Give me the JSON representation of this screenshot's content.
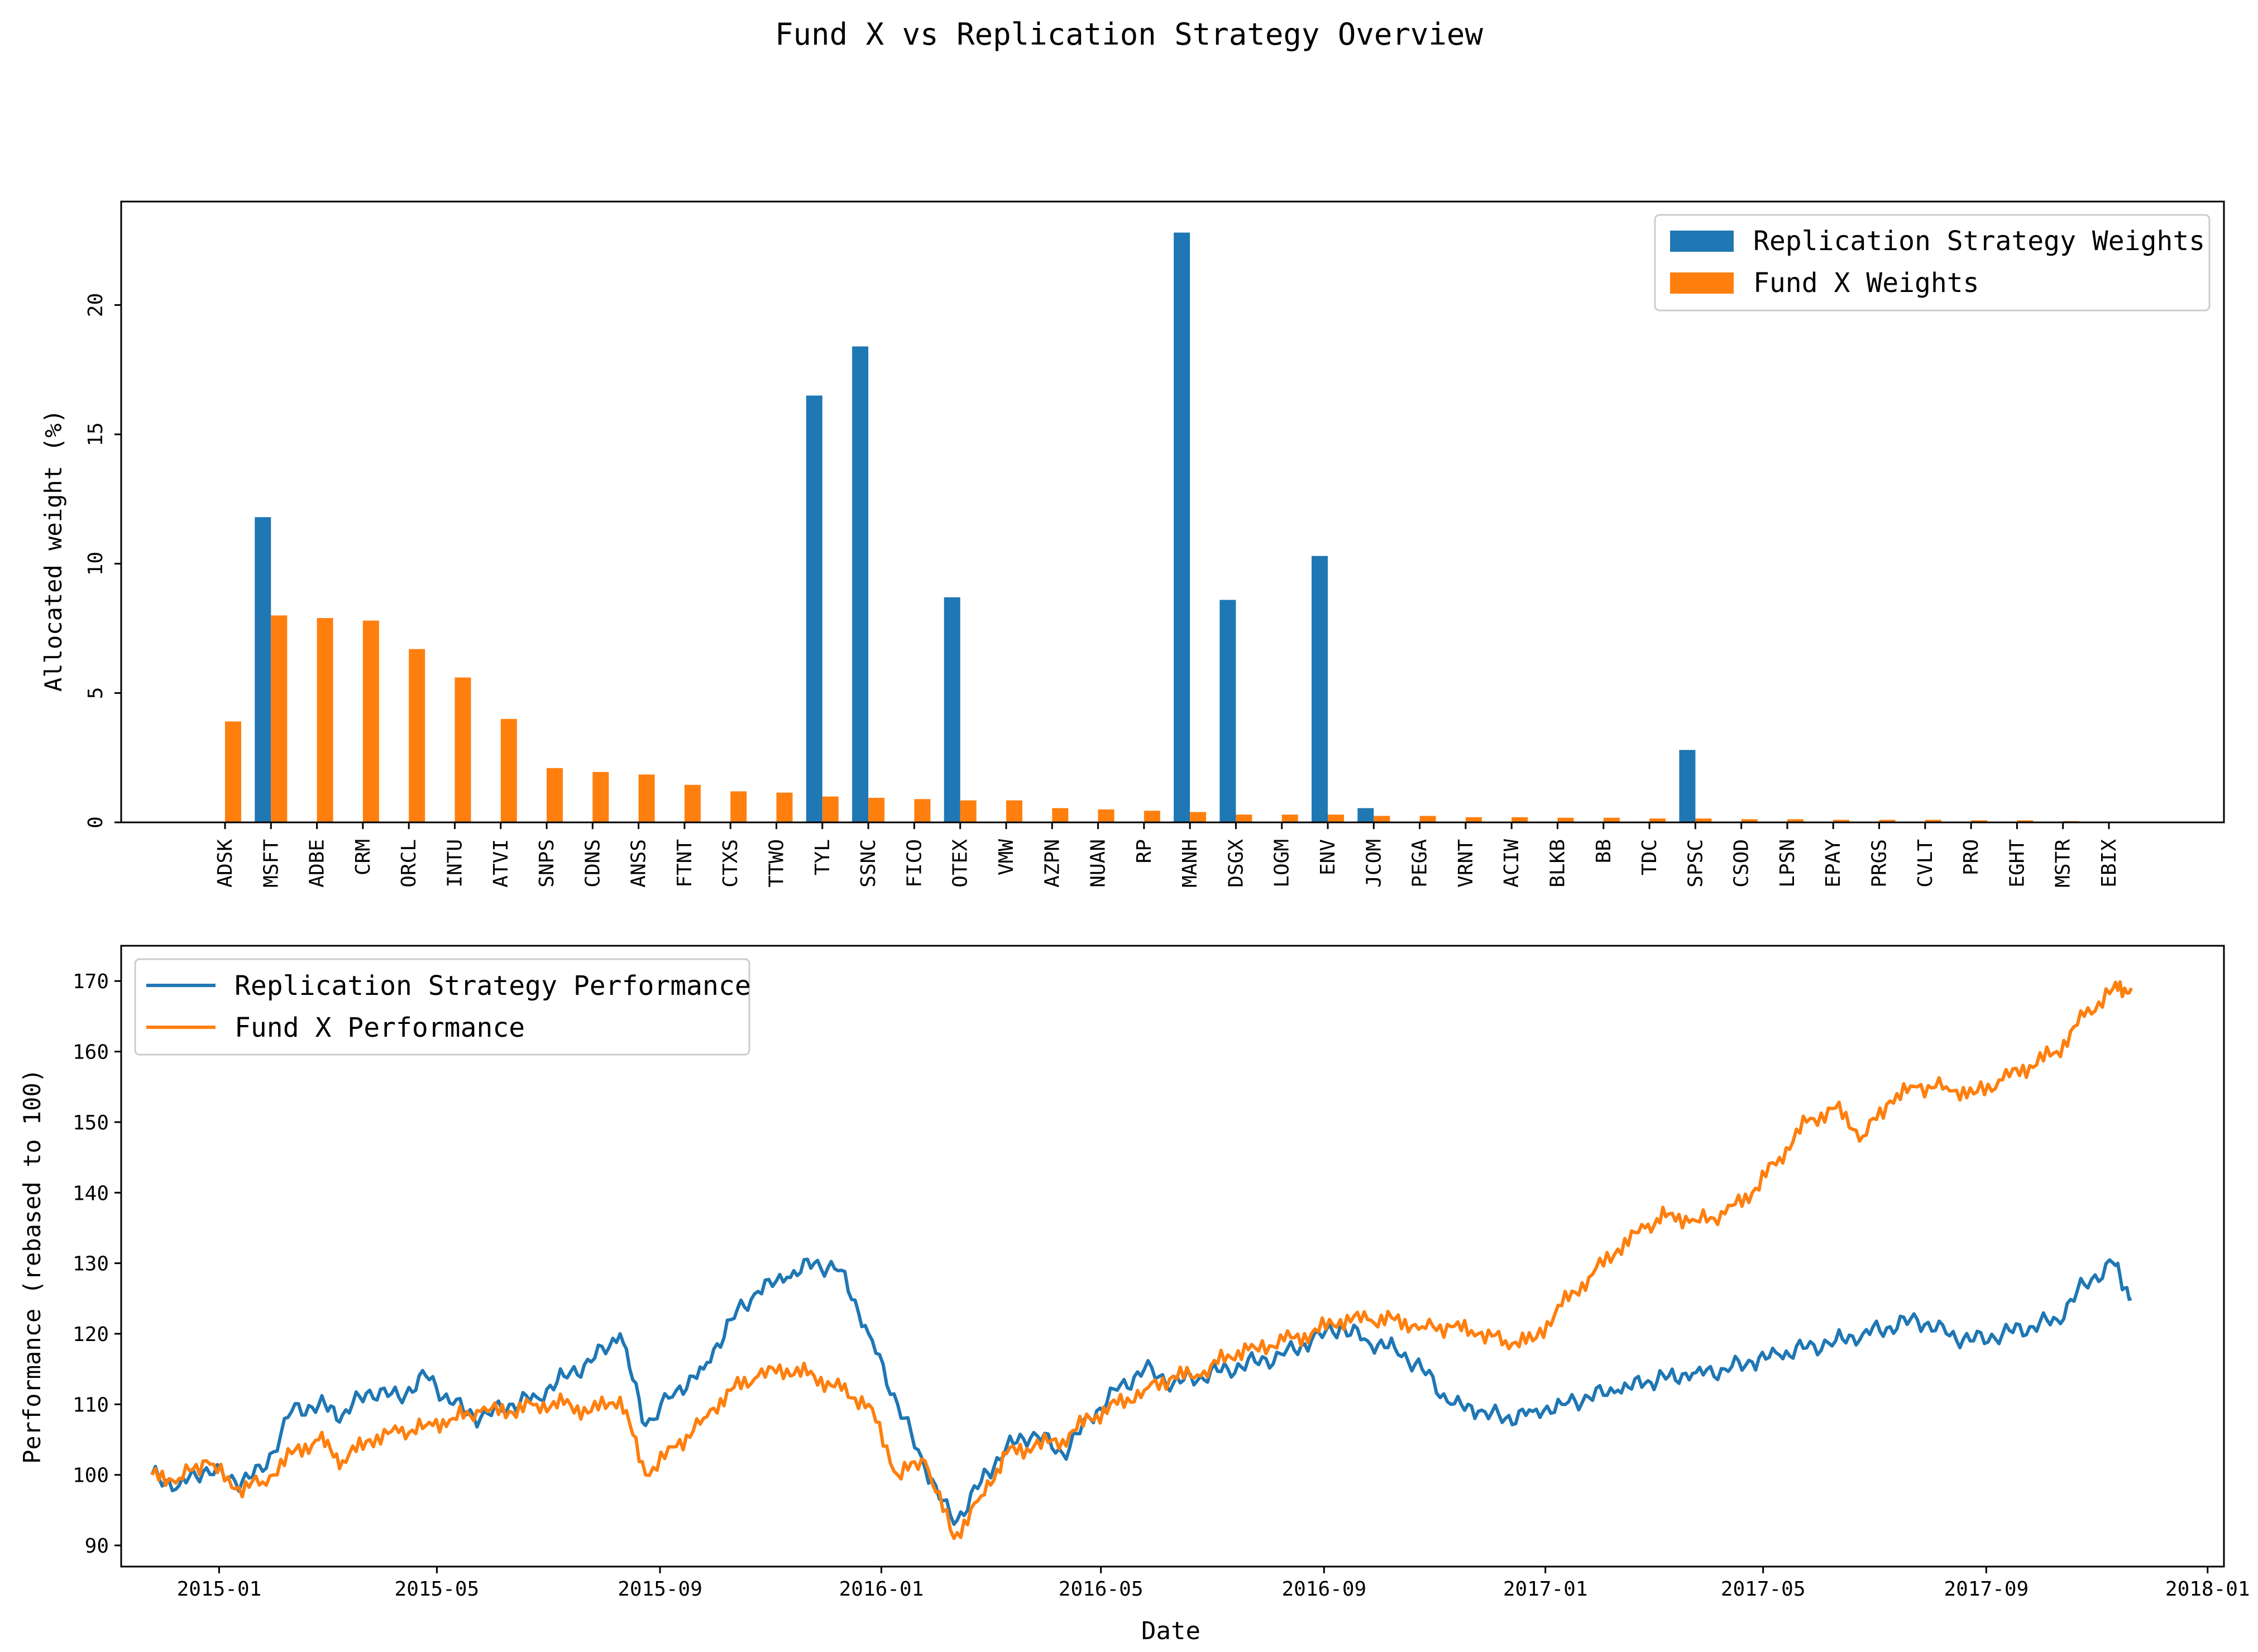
{
  "figure": {
    "title": "Fund X vs Replication Strategy Overview"
  },
  "colors": {
    "replication": "#1f77b4",
    "fund": "#ff7f0e",
    "axis": "#000000",
    "legend_border": "#cccccc"
  },
  "chart_data": [
    {
      "type": "bar",
      "ylabel": "Allocated weight (%)",
      "xlabel": "",
      "ylim": [
        0,
        24
      ],
      "yticks": [
        0,
        5,
        10,
        15,
        20
      ],
      "legend_position": "top-right",
      "categories": [
        "ADSK",
        "MSFT",
        "ADBE",
        "CRM",
        "ORCL",
        "INTU",
        "ATVI",
        "SNPS",
        "CDNS",
        "ANSS",
        "FTNT",
        "CTXS",
        "TTWO",
        "TYL",
        "SSNC",
        "FICO",
        "OTEX",
        "VMW",
        "AZPN",
        "NUAN",
        "RP",
        "MANH",
        "DSGX",
        "LOGM",
        "ENV",
        "JCOM",
        "PEGA",
        "VRNT",
        "ACIW",
        "BLKB",
        "BB",
        "TDC",
        "SPSC",
        "CSOD",
        "LPSN",
        "EPAY",
        "PRGS",
        "CVLT",
        "PRO",
        "EGHT",
        "MSTR",
        "EBIX"
      ],
      "series": [
        {
          "name": "Replication Strategy Weights",
          "values": [
            0,
            11.8,
            0,
            0,
            0,
            0,
            0,
            0,
            0,
            0,
            0,
            0,
            0,
            16.5,
            18.4,
            0,
            8.7,
            0,
            0,
            0,
            0,
            22.8,
            8.6,
            0,
            10.3,
            0.55,
            0,
            0,
            0,
            0,
            0,
            0,
            2.8,
            0,
            0,
            0,
            0,
            0,
            0,
            0,
            0,
            0
          ]
        },
        {
          "name": "Fund X Weights",
          "values": [
            3.9,
            8.0,
            7.9,
            7.8,
            6.7,
            5.6,
            4.0,
            2.1,
            1.95,
            1.85,
            1.45,
            1.2,
            1.15,
            1.0,
            0.95,
            0.9,
            0.85,
            0.85,
            0.55,
            0.5,
            0.45,
            0.4,
            0.3,
            0.3,
            0.3,
            0.25,
            0.25,
            0.2,
            0.2,
            0.18,
            0.18,
            0.15,
            0.15,
            0.12,
            0.12,
            0.1,
            0.1,
            0.1,
            0.08,
            0.08,
            0.05,
            0.03
          ]
        }
      ]
    },
    {
      "type": "line",
      "xlabel": "Date",
      "ylabel": "Performance (rebased to 100)",
      "x_range": [
        "2014-11-08",
        "2018-01-10"
      ],
      "ylim": [
        87,
        175
      ],
      "yticks": [
        90,
        100,
        110,
        120,
        130,
        140,
        150,
        160,
        170
      ],
      "xticks": [
        "2015-01",
        "2015-05",
        "2015-09",
        "2016-01",
        "2016-05",
        "2016-09",
        "2017-01",
        "2017-05",
        "2017-09",
        "2018-01"
      ],
      "legend_position": "top-left",
      "x": [
        "2014-11-25",
        "2014-12-10",
        "2014-12-25",
        "2015-01-10",
        "2015-01-25",
        "2015-02-10",
        "2015-02-25",
        "2015-03-10",
        "2015-03-25",
        "2015-04-10",
        "2015-04-25",
        "2015-05-10",
        "2015-05-25",
        "2015-06-10",
        "2015-06-25",
        "2015-07-10",
        "2015-07-25",
        "2015-08-10",
        "2015-08-24",
        "2015-09-10",
        "2015-09-25",
        "2015-10-10",
        "2015-10-25",
        "2015-11-10",
        "2015-11-25",
        "2015-12-10",
        "2015-12-25",
        "2016-01-10",
        "2016-01-25",
        "2016-02-10",
        "2016-02-25",
        "2016-03-10",
        "2016-03-25",
        "2016-04-10",
        "2016-04-25",
        "2016-05-10",
        "2016-05-25",
        "2016-06-10",
        "2016-06-25",
        "2016-07-10",
        "2016-07-25",
        "2016-08-10",
        "2016-08-25",
        "2016-09-10",
        "2016-09-25",
        "2016-10-10",
        "2016-10-25",
        "2016-11-10",
        "2016-11-25",
        "2016-12-10",
        "2016-12-25",
        "2017-01-10",
        "2017-01-25",
        "2017-02-10",
        "2017-02-25",
        "2017-03-10",
        "2017-03-25",
        "2017-04-10",
        "2017-04-25",
        "2017-05-10",
        "2017-05-25",
        "2017-06-10",
        "2017-06-25",
        "2017-07-10",
        "2017-07-25",
        "2017-08-10",
        "2017-08-25",
        "2017-09-10",
        "2017-09-25",
        "2017-10-10",
        "2017-10-25",
        "2017-11-10",
        "2017-11-20"
      ],
      "series": [
        {
          "name": "Replication Strategy Performance",
          "values": [
            100,
            98.5,
            101,
            99,
            100.5,
            109,
            110,
            108.5,
            112,
            111,
            114,
            110,
            108,
            110,
            111,
            114,
            116,
            120,
            107,
            112,
            115,
            122,
            126,
            128,
            130,
            129,
            120,
            110,
            101,
            93,
            99,
            104,
            106,
            103,
            108,
            112,
            115,
            113,
            114,
            115,
            116,
            117,
            119,
            121,
            119,
            118,
            115,
            110,
            109,
            108,
            109,
            110,
            111,
            112,
            113,
            114,
            114.5,
            115,
            116,
            117,
            118,
            119,
            120,
            121,
            122,
            120,
            119,
            120,
            121,
            122,
            127,
            130,
            125
          ]
        },
        {
          "name": "Fund X Performance",
          "values": [
            100,
            99.5,
            102,
            98,
            99,
            103,
            105,
            102,
            105,
            106,
            107,
            108,
            109,
            109,
            110,
            110,
            109,
            111,
            100,
            104,
            108,
            112,
            114,
            115,
            114,
            112,
            110,
            100,
            102,
            91,
            97,
            103,
            104,
            105,
            108,
            110,
            112,
            114,
            114,
            117,
            118,
            119,
            120,
            122,
            122,
            122,
            121,
            121,
            120,
            119,
            119,
            124,
            128,
            132,
            135,
            137,
            136,
            137,
            140,
            145,
            150,
            152,
            148,
            153,
            155,
            155,
            154,
            156,
            158,
            160,
            165,
            169,
            169
          ]
        }
      ]
    }
  ]
}
